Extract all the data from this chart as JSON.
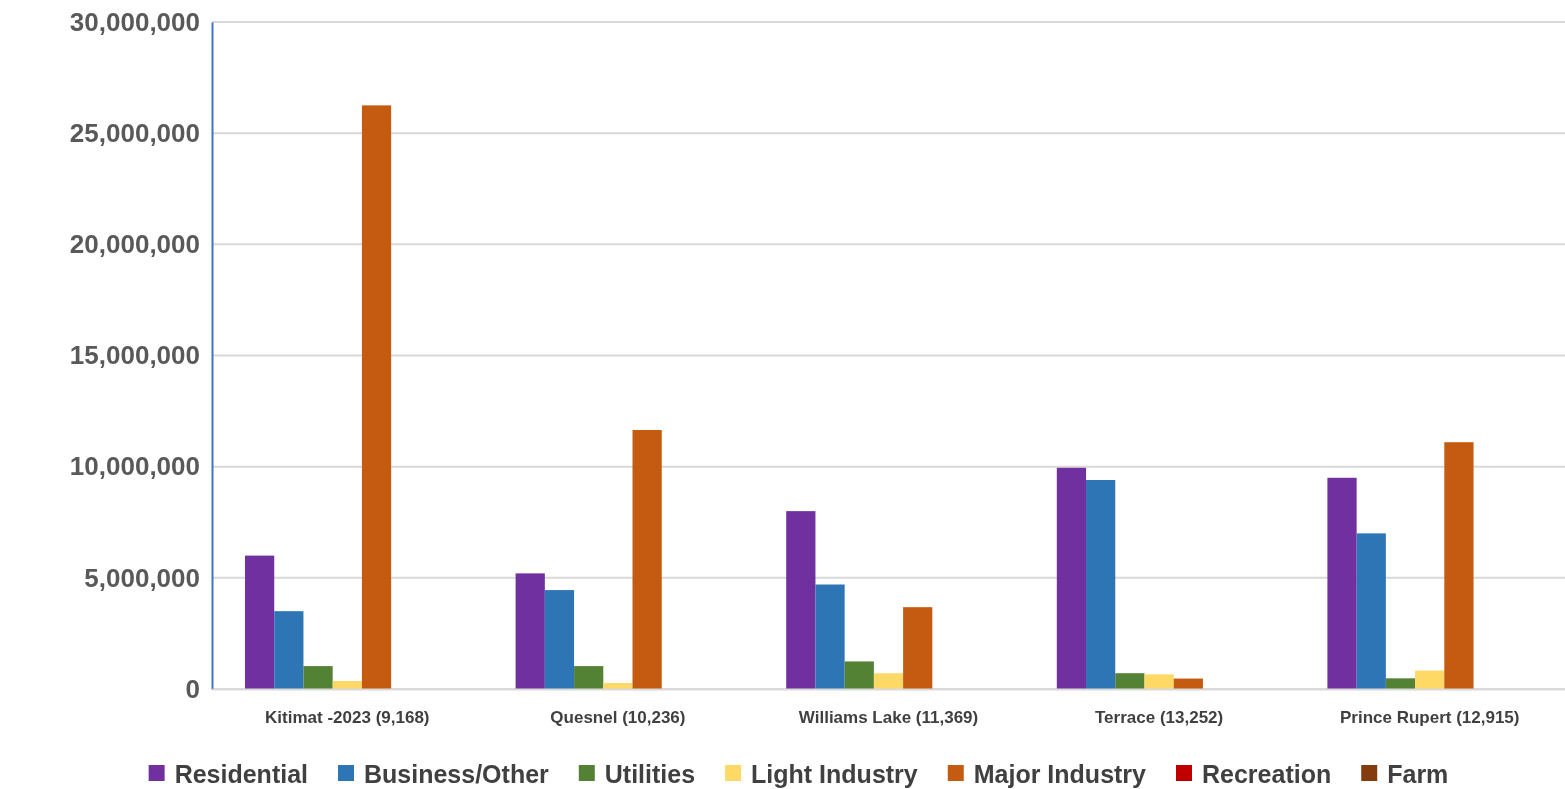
{
  "chart_data": {
    "type": "bar",
    "categories": [
      "Kitimat -2023 (9,168)",
      "Quesnel (10,236)",
      "Williams Lake (11,369)",
      "Terrace (13,252)",
      "Prince Rupert (12,915)"
    ],
    "series": [
      {
        "name": "Residential",
        "color": "#7030a0",
        "values": [
          6000000,
          5200000,
          8000000,
          9950000,
          9500000
        ]
      },
      {
        "name": "Business/Other",
        "color": "#2e75b6",
        "values": [
          3500000,
          4450000,
          4700000,
          9400000,
          7000000
        ]
      },
      {
        "name": "Utilities",
        "color": "#548235",
        "values": [
          1030000,
          1030000,
          1240000,
          710000,
          480000
        ]
      },
      {
        "name": "Light Industry",
        "color": "#ffd966",
        "values": [
          360000,
          270000,
          710000,
          660000,
          830000
        ]
      },
      {
        "name": "Major Industry",
        "color": "#c55a11",
        "values": [
          26250000,
          11650000,
          3680000,
          470000,
          11100000
        ]
      },
      {
        "name": "Recreation",
        "color": "#c00000",
        "values": [
          0,
          0,
          0,
          0,
          0
        ]
      },
      {
        "name": "Farm",
        "color": "#843c0c",
        "values": [
          0,
          0,
          0,
          0,
          0
        ]
      }
    ],
    "ylim": [
      0,
      30000000
    ],
    "yticks": [
      {
        "value": 0,
        "label": "0"
      },
      {
        "value": 5000000,
        "label": "5,000,000"
      },
      {
        "value": 10000000,
        "label": "10,000,000"
      },
      {
        "value": 15000000,
        "label": "15,000,000"
      },
      {
        "value": 20000000,
        "label": "20,000,000"
      },
      {
        "value": 25000000,
        "label": "25,000,000"
      },
      {
        "value": 30000000,
        "label": "30,000,000"
      }
    ],
    "grid": "y",
    "legend": "bottom"
  }
}
